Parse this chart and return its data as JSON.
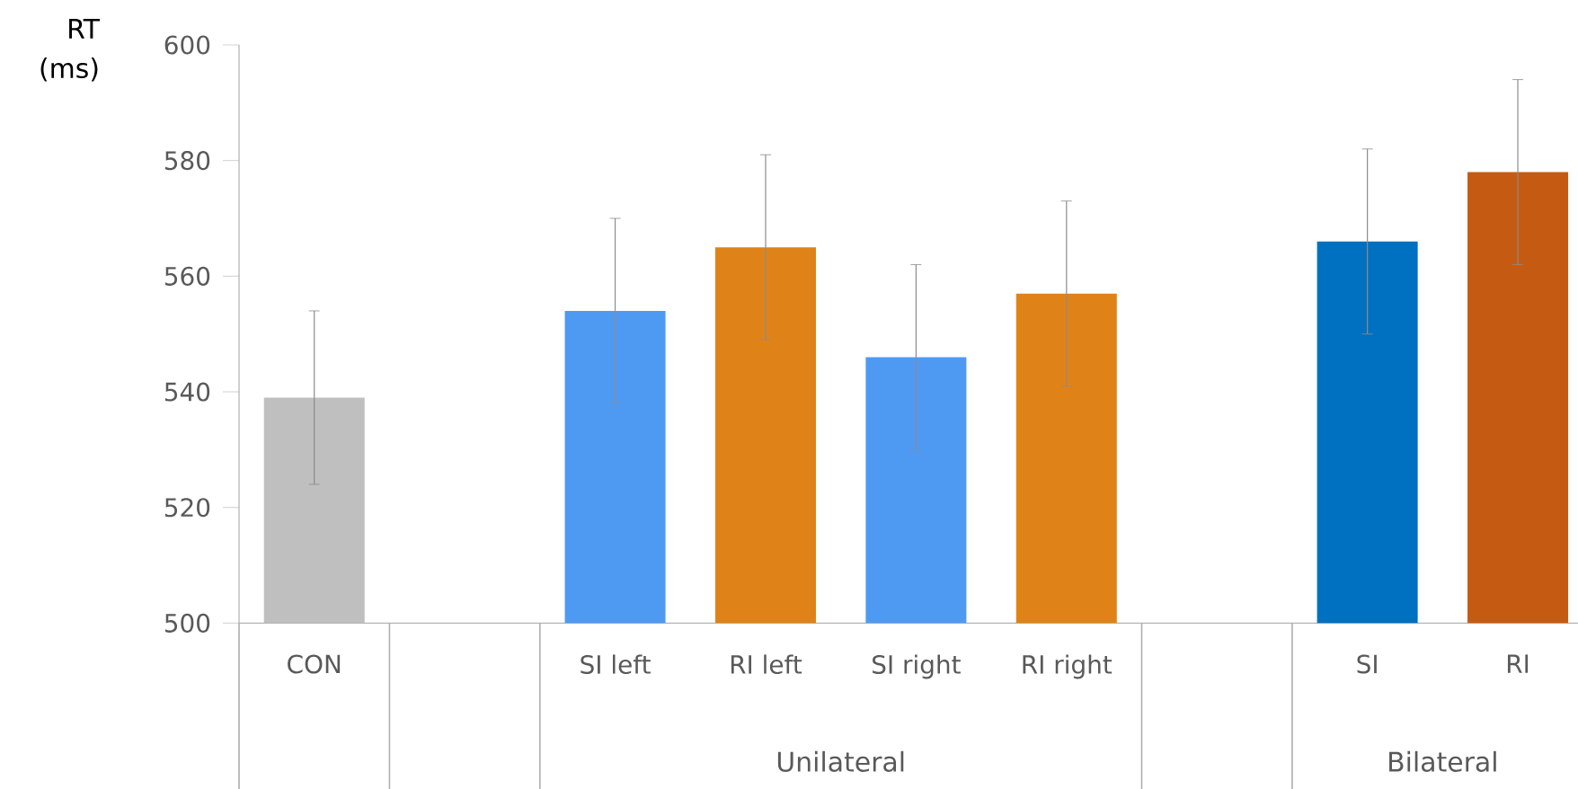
{
  "chart_data": {
    "type": "bar",
    "ylabel": "RT (ms)",
    "categories": [
      "CON",
      null,
      "SI left",
      "RI left",
      "SI right",
      "RI right",
      null,
      "SI",
      "RI"
    ],
    "values": [
      539,
      null,
      554,
      565,
      546,
      557,
      null,
      566,
      578
    ],
    "errors": [
      15,
      null,
      16,
      16,
      16,
      16,
      null,
      16,
      16
    ],
    "colors": [
      "#bfbfbf",
      "#ffffff",
      "#4e9af3",
      "#df8318",
      "#4e9af3",
      "#df8318",
      "#ffffff",
      "#0070c0",
      "#c55b13"
    ],
    "ylim": [
      500,
      600
    ],
    "yticks": [
      500,
      520,
      540,
      560,
      580,
      600
    ],
    "annotations": [
      "Unilateral",
      "Bilateral"
    ],
    "grid": false
  }
}
